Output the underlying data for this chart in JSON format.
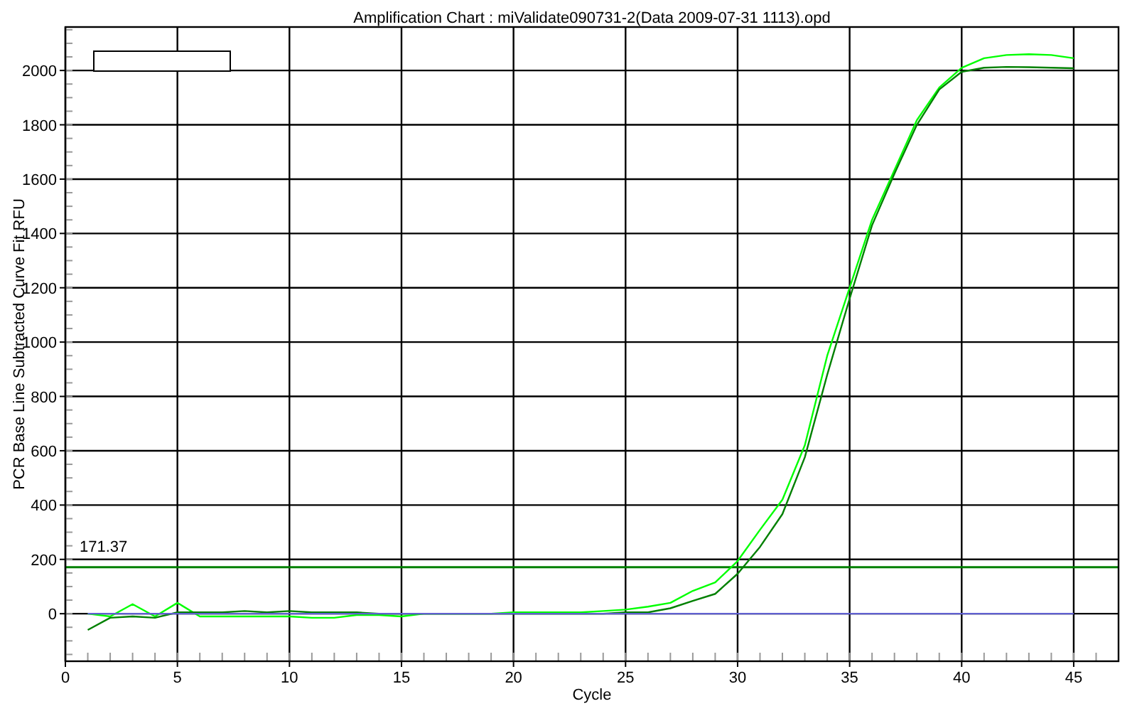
{
  "chart_data": {
    "type": "line",
    "title": "Amplification Chart : miValidate090731-2(Data 2009-07-31 1113).opd",
    "xlabel": "Cycle",
    "ylabel": "PCR Base Line Subtracted Curve Fit RFU",
    "x": [
      1,
      2,
      3,
      4,
      5,
      6,
      7,
      8,
      9,
      10,
      11,
      12,
      13,
      14,
      15,
      16,
      17,
      18,
      19,
      20,
      21,
      22,
      23,
      24,
      25,
      26,
      27,
      28,
      29,
      30,
      31,
      32,
      33,
      34,
      35,
      36,
      37,
      38,
      39,
      40,
      41,
      42,
      43,
      44,
      45
    ],
    "series": [
      {
        "color": "#00ff00",
        "values": [
          0,
          -10,
          35,
          -10,
          40,
          -10,
          -10,
          -10,
          -10,
          -10,
          -15,
          -15,
          -5,
          -5,
          -10,
          0,
          0,
          0,
          0,
          5,
          5,
          5,
          5,
          10,
          15,
          26,
          40,
          84,
          115,
          194,
          309,
          420,
          620,
          950,
          1200,
          1450,
          1633,
          1817,
          1937,
          2010,
          2045,
          2057,
          2060,
          2057,
          2045
        ]
      },
      {
        "color": "#008000",
        "values": [
          -60,
          -15,
          -10,
          -15,
          5,
          5,
          5,
          10,
          5,
          10,
          5,
          5,
          5,
          0,
          0,
          0,
          0,
          0,
          0,
          0,
          0,
          0,
          0,
          0,
          5,
          5,
          20,
          47,
          73,
          147,
          246,
          367,
          576,
          880,
          1160,
          1430,
          1620,
          1800,
          1930,
          1995,
          2010,
          2013,
          2012,
          2010,
          2008
        ]
      },
      {
        "color": "#6060d0",
        "values": [
          0,
          0,
          0,
          0,
          0,
          0,
          0,
          0,
          0,
          0,
          0,
          0,
          0,
          0,
          0,
          0,
          0,
          0,
          0,
          0,
          0,
          0,
          0,
          0,
          0,
          0,
          0,
          0,
          0,
          0,
          0,
          0,
          0,
          0,
          0,
          0,
          0,
          0,
          0,
          0,
          0,
          0,
          0,
          0,
          0
        ]
      }
    ],
    "xlim": [
      0,
      47
    ],
    "ylim": [
      -175,
      2160
    ],
    "xticks": [
      0,
      5,
      10,
      15,
      20,
      25,
      30,
      35,
      40,
      45
    ],
    "yticks": [
      0,
      200,
      400,
      600,
      800,
      1000,
      1200,
      1400,
      1600,
      1800,
      2000
    ],
    "grid": true,
    "ref_lines": [
      {
        "axis": "y",
        "value": 171.37,
        "label": "171.37",
        "color": "#008000"
      }
    ]
  }
}
